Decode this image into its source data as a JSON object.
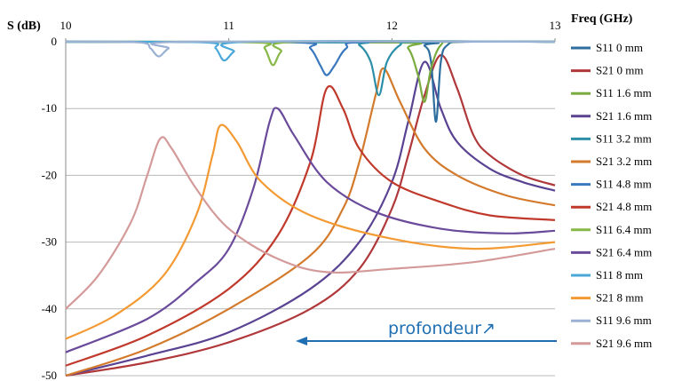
{
  "chart_data": {
    "type": "line",
    "title": "",
    "ylabel": "S (dB)",
    "xlabel": "Freq (GHz)",
    "xlim": [
      10,
      13
    ],
    "ylim": [
      -50,
      0
    ],
    "x_ticks": [
      "10",
      "11",
      "12",
      "13"
    ],
    "y_ticks": [
      "0",
      "-10",
      "-20",
      "-30",
      "-40",
      "-50"
    ],
    "grid": "horizontal",
    "legend_position": "right",
    "series": [
      {
        "name": "S11 0 mm",
        "color": "#2e6e9e",
        "points": [
          [
            10,
            0
          ],
          [
            12.1,
            -0.1
          ],
          [
            12.2,
            -0.6
          ],
          [
            12.24,
            -3
          ],
          [
            12.27,
            -12
          ],
          [
            12.3,
            -3
          ],
          [
            12.34,
            -0.5
          ],
          [
            12.45,
            0
          ],
          [
            13,
            0
          ]
        ]
      },
      {
        "name": "S21 0 mm",
        "color": "#b0383a",
        "points": [
          [
            10,
            -50
          ],
          [
            10.5,
            -48
          ],
          [
            11,
            -45
          ],
          [
            11.5,
            -40
          ],
          [
            11.8,
            -34
          ],
          [
            12,
            -25
          ],
          [
            12.1,
            -17
          ],
          [
            12.2,
            -8
          ],
          [
            12.3,
            -2
          ],
          [
            12.4,
            -7
          ],
          [
            12.5,
            -14
          ],
          [
            12.6,
            -17
          ],
          [
            12.8,
            -20
          ],
          [
            13,
            -21.5
          ]
        ]
      },
      {
        "name": "S11 1.6 mm",
        "color": "#7aab3e",
        "points": [
          [
            10,
            0
          ],
          [
            12,
            -0.1
          ],
          [
            12.1,
            -1
          ],
          [
            12.16,
            -5
          ],
          [
            12.2,
            -9
          ],
          [
            12.24,
            -4
          ],
          [
            12.3,
            -0.5
          ],
          [
            12.4,
            0
          ],
          [
            13,
            0
          ]
        ]
      },
      {
        "name": "S21 1.6 mm",
        "color": "#5a4292",
        "points": [
          [
            10,
            -50
          ],
          [
            10.5,
            -47
          ],
          [
            11,
            -43.5
          ],
          [
            11.5,
            -37
          ],
          [
            11.8,
            -30
          ],
          [
            12,
            -21
          ],
          [
            12.1,
            -12
          ],
          [
            12.2,
            -3
          ],
          [
            12.3,
            -10
          ],
          [
            12.4,
            -15
          ],
          [
            12.6,
            -19
          ],
          [
            12.8,
            -21
          ],
          [
            13,
            -22.3
          ]
        ]
      },
      {
        "name": "S11 3.2 mm",
        "color": "#2c8fa8",
        "points": [
          [
            10,
            0
          ],
          [
            11.7,
            -0.1
          ],
          [
            11.8,
            -0.5
          ],
          [
            11.87,
            -3
          ],
          [
            11.92,
            -8
          ],
          [
            11.97,
            -3
          ],
          [
            12.05,
            -0.5
          ],
          [
            12.15,
            0
          ],
          [
            13,
            0
          ]
        ]
      },
      {
        "name": "S21 3.2 mm",
        "color": "#d47a2c",
        "points": [
          [
            10,
            -50
          ],
          [
            10.5,
            -46
          ],
          [
            11,
            -40
          ],
          [
            11.5,
            -32
          ],
          [
            11.7,
            -25
          ],
          [
            11.8,
            -18
          ],
          [
            11.9,
            -8
          ],
          [
            11.95,
            -4
          ],
          [
            12.05,
            -9
          ],
          [
            12.2,
            -16
          ],
          [
            12.4,
            -20
          ],
          [
            12.7,
            -23
          ],
          [
            13,
            -24.5
          ]
        ]
      },
      {
        "name": "S11 4.8 mm",
        "color": "#3a78bf",
        "points": [
          [
            10,
            0
          ],
          [
            11.4,
            -0.1
          ],
          [
            11.5,
            -1
          ],
          [
            11.56,
            -3.5
          ],
          [
            11.6,
            -5
          ],
          [
            11.65,
            -3.5
          ],
          [
            11.72,
            -1
          ],
          [
            11.85,
            0
          ],
          [
            13,
            0
          ]
        ]
      },
      {
        "name": "S21 4.8 mm",
        "color": "#c0392b",
        "points": [
          [
            10,
            -48.5
          ],
          [
            10.5,
            -44
          ],
          [
            11,
            -37
          ],
          [
            11.3,
            -29
          ],
          [
            11.5,
            -18
          ],
          [
            11.6,
            -7
          ],
          [
            11.7,
            -10
          ],
          [
            11.8,
            -16
          ],
          [
            12,
            -21
          ],
          [
            12.3,
            -24
          ],
          [
            12.6,
            -26
          ],
          [
            13,
            -26.7
          ]
        ]
      },
      {
        "name": "S11 6.4 mm",
        "color": "#88b848",
        "points": [
          [
            10,
            0
          ],
          [
            11.15,
            -0.1
          ],
          [
            11.22,
            -1
          ],
          [
            11.27,
            -3.5
          ],
          [
            11.32,
            -1.5
          ],
          [
            11.42,
            0
          ],
          [
            13,
            0
          ]
        ]
      },
      {
        "name": "S21 6.4 mm",
        "color": "#6a4a9a",
        "points": [
          [
            10,
            -46.5
          ],
          [
            10.5,
            -41.5
          ],
          [
            10.8,
            -36
          ],
          [
            11,
            -31
          ],
          [
            11.15,
            -22
          ],
          [
            11.25,
            -12
          ],
          [
            11.3,
            -10
          ],
          [
            11.4,
            -14
          ],
          [
            11.6,
            -21
          ],
          [
            11.9,
            -25.5
          ],
          [
            12.3,
            -28
          ],
          [
            12.7,
            -28.7
          ],
          [
            13,
            -28.3
          ]
        ]
      },
      {
        "name": "S11 8 mm",
        "color": "#4aa8d8",
        "points": [
          [
            10,
            0
          ],
          [
            10.85,
            -0.1
          ],
          [
            10.92,
            -1
          ],
          [
            10.97,
            -2.8
          ],
          [
            11.03,
            -1.5
          ],
          [
            11.12,
            0
          ],
          [
            13,
            0
          ]
        ]
      },
      {
        "name": "S21 8 mm",
        "color": "#f39a33",
        "points": [
          [
            10,
            -44.5
          ],
          [
            10.3,
            -41
          ],
          [
            10.6,
            -35
          ],
          [
            10.8,
            -26
          ],
          [
            10.9,
            -17
          ],
          [
            10.95,
            -12.5
          ],
          [
            11.05,
            -15
          ],
          [
            11.2,
            -21
          ],
          [
            11.5,
            -26
          ],
          [
            12,
            -29.5
          ],
          [
            12.5,
            -31
          ],
          [
            13,
            -30
          ]
        ]
      },
      {
        "name": "S11 9.6 mm",
        "color": "#9ab0d4",
        "points": [
          [
            10,
            0
          ],
          [
            10.45,
            -0.1
          ],
          [
            10.52,
            -1
          ],
          [
            10.57,
            -2.2
          ],
          [
            10.63,
            -1
          ],
          [
            10.72,
            0
          ],
          [
            13,
            0
          ]
        ]
      },
      {
        "name": "S21 9.6 mm",
        "color": "#d49a9a",
        "points": [
          [
            10,
            -40
          ],
          [
            10.2,
            -35
          ],
          [
            10.4,
            -27
          ],
          [
            10.5,
            -20
          ],
          [
            10.58,
            -14.5
          ],
          [
            10.65,
            -16
          ],
          [
            10.8,
            -22
          ],
          [
            11,
            -28
          ],
          [
            11.3,
            -32.5
          ],
          [
            11.6,
            -34.5
          ],
          [
            12,
            -34
          ],
          [
            12.5,
            -33
          ],
          [
            13,
            -31
          ]
        ]
      }
    ],
    "annotations": [
      {
        "text": "profondeur↗",
        "color": "#1f6fb2"
      }
    ]
  }
}
